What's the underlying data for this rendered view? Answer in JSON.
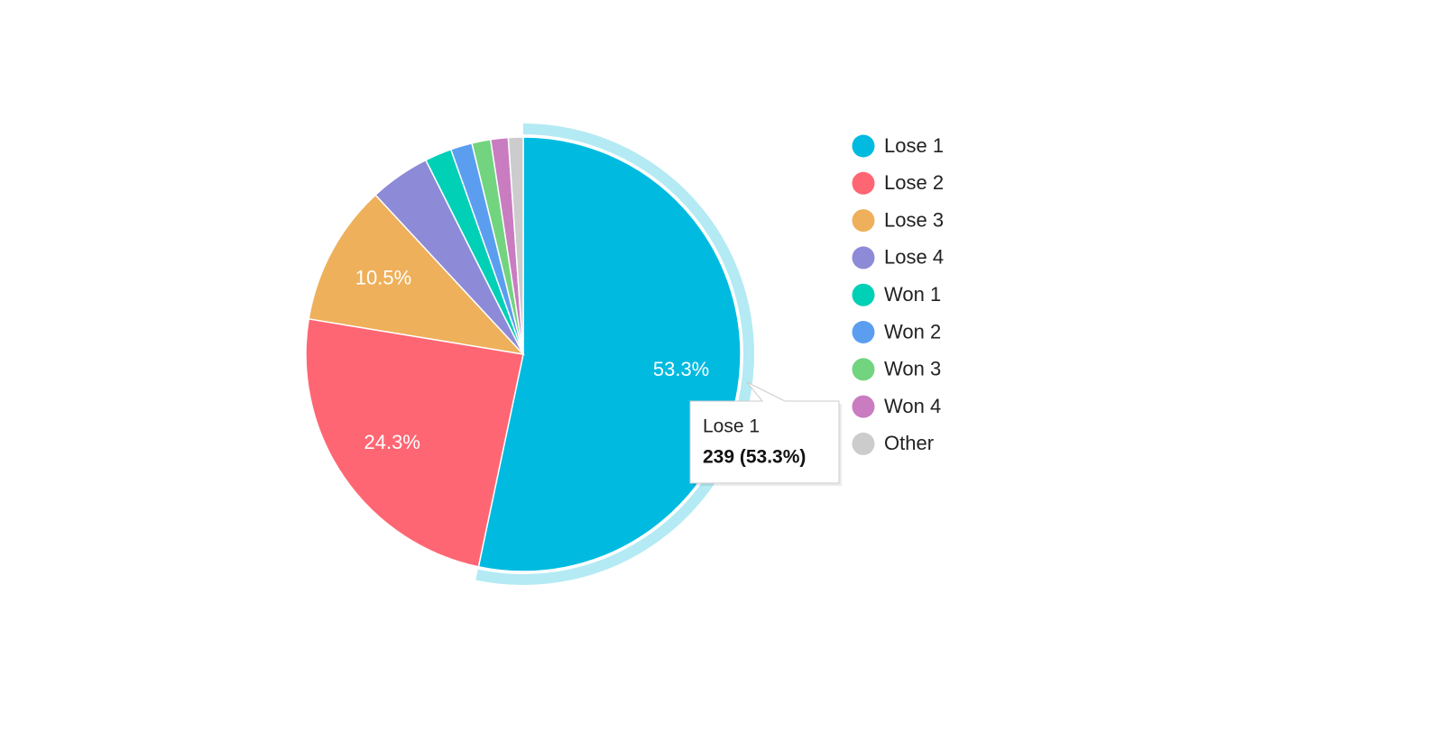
{
  "chart_data": {
    "type": "pie",
    "categories": [
      "Lose 1",
      "Lose 2",
      "Lose 3",
      "Lose 4",
      "Won 1",
      "Won 2",
      "Won 3",
      "Won 4",
      "Other"
    ],
    "values": [
      53.3,
      24.3,
      10.5,
      4.5,
      2.0,
      1.6,
      1.4,
      1.3,
      1.1
    ],
    "value_labels": [
      "53.3%",
      "24.3%",
      "10.5%",
      null,
      null,
      null,
      null,
      null,
      null
    ],
    "colors": [
      "#00bae0",
      "#ff6673",
      "#eeb05a",
      "#8d8bd7",
      "#00d0b6",
      "#5b9ef0",
      "#72d47f",
      "#c97cc0",
      "#cccccc"
    ],
    "highlight_color": "#b3eaf4",
    "legend": "right",
    "tooltip": {
      "title": "Lose 1",
      "text": "239 (53.3%)"
    }
  }
}
